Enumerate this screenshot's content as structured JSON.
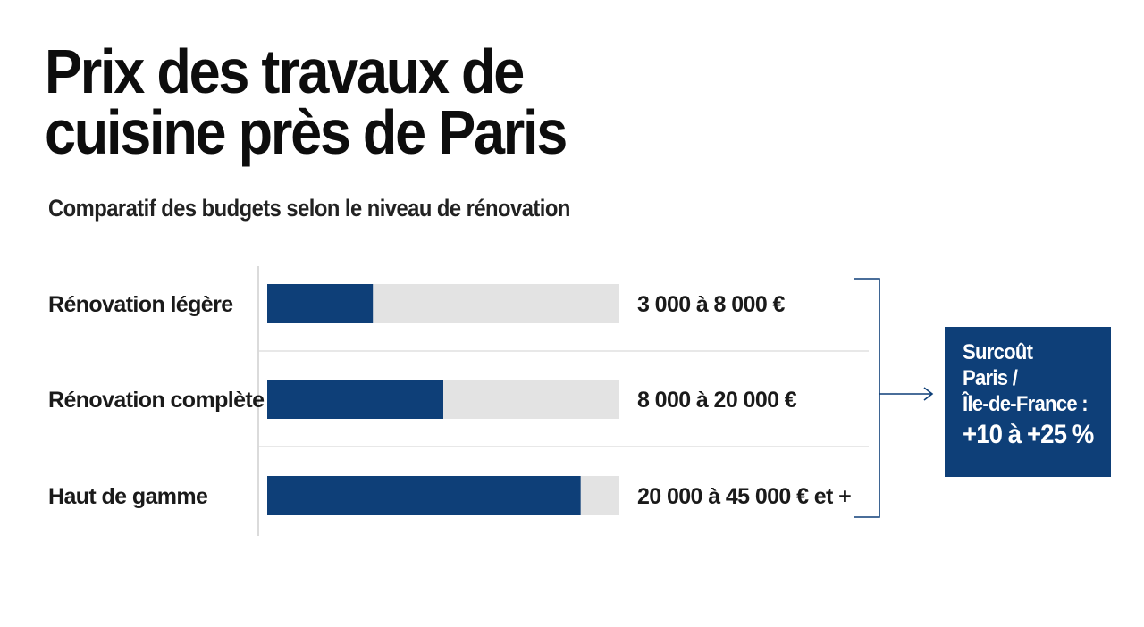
{
  "header": {
    "title": "Prix des travaux de cuisine près de Paris",
    "subtitle": "Comparatif des budgets selon le niveau de rénovation"
  },
  "chart_data": {
    "type": "bar",
    "orientation": "horizontal",
    "title": "Prix des travaux de cuisine près de Paris",
    "subtitle": "Comparatif des budgets selon le niveau de rénovation",
    "categories": [
      "Rénovation légère",
      "Rénovation complète",
      "Haut de gamme"
    ],
    "values": [
      0.3,
      0.5,
      0.89
    ],
    "value_labels": [
      "3 000 à 8 000 €",
      "8 000 à 20 000 €",
      "20 000 à 45 000 € et +"
    ],
    "ranges": [
      {
        "min": 3000,
        "max": 8000
      },
      {
        "min": 8000,
        "max": 20000
      },
      {
        "min": 20000,
        "max": 45000
      }
    ],
    "grid": true,
    "bar_color": "#0e3f78",
    "track_color": "#e3e3e3"
  },
  "callout": {
    "lines": [
      "Surcoût",
      "Paris /",
      "Île-de-France :"
    ],
    "value": "+10 à +25 %",
    "background": "#0e3f78"
  }
}
